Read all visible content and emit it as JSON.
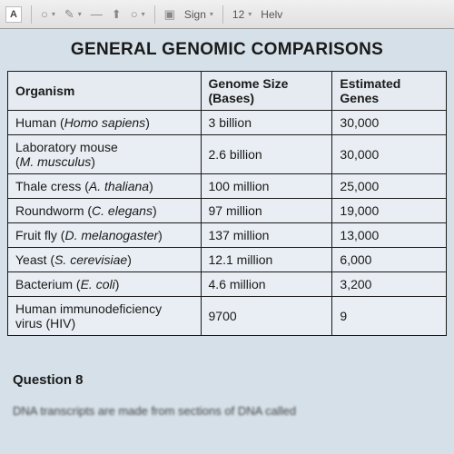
{
  "toolbar": {
    "text_btn": "A",
    "sign_label": "Sign",
    "font_size": "12",
    "font_name": "Helv"
  },
  "title": "GENERAL GENOMIC COMPARISONS",
  "columns": {
    "c1": "Organism",
    "c2_l1": "Genome Size",
    "c2_l2": "(Bases)",
    "c3_l1": "Estimated",
    "c3_l2": "Genes"
  },
  "r1": {
    "org_a": "Human (",
    "org_i": "Homo sapiens",
    "org_b": ")",
    "size": "3 billion",
    "genes": "30,000"
  },
  "r2": {
    "org_a": "Laboratory mouse",
    "org_b": "(",
    "org_i": "M. musculus",
    "org_c": ")",
    "size": "2.6 billion",
    "genes": "30,000"
  },
  "r3": {
    "org_a": "Thale cress (",
    "org_i": "A. thaliana",
    "org_b": ")",
    "size": "100 million",
    "genes": "25,000"
  },
  "r4": {
    "org_a": "Roundworm (",
    "org_i": "C. elegans",
    "org_b": ")",
    "size": "97 million",
    "genes": "19,000"
  },
  "r5": {
    "org_a": "Fruit fly (",
    "org_i": "D. melanogaster",
    "org_b": ")",
    "size": "137 million",
    "genes": "13,000"
  },
  "r6": {
    "org_a": "Yeast (",
    "org_i": "S. cerevisiae",
    "org_b": ")",
    "size": "12.1 million",
    "genes": "6,000"
  },
  "r7": {
    "org_a": "Bacterium (",
    "org_i": "E. coli",
    "org_b": ")",
    "size": "4.6 million",
    "genes": "3,200"
  },
  "r8": {
    "org_a": "Human immunodeficiency",
    "org_b": "virus (HIV)",
    "size": "9700",
    "genes": "9"
  },
  "question": {
    "label": "Question 8",
    "text": "DNA transcripts are made from sections of DNA called"
  }
}
